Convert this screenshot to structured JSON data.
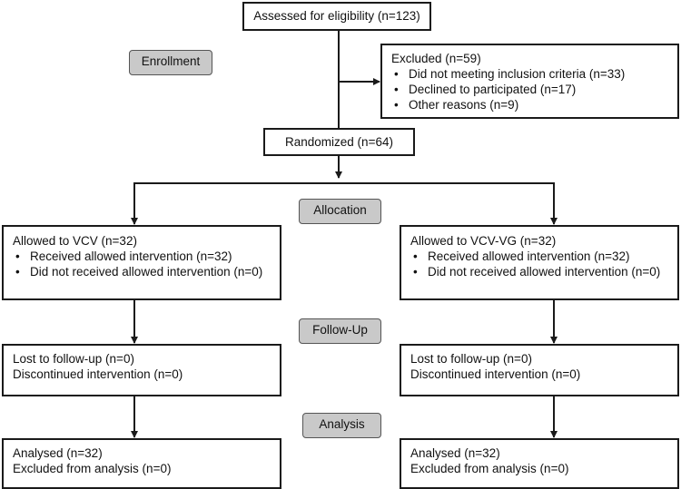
{
  "eligibility": {
    "title": "Assessed for eligibility (n=123)"
  },
  "excluded": {
    "title": "Excluded (n=59)",
    "reasons": [
      "Did not meeting inclusion criteria (n=33)",
      "Declined to participated (n=17)",
      "Other reasons (n=9)"
    ]
  },
  "randomized": {
    "title": "Randomized (n=64)"
  },
  "stages": {
    "enrollment": "Enrollment",
    "allocation": "Allocation",
    "follow_up": "Follow-Up",
    "analysis": "Analysis"
  },
  "arms": [
    {
      "allocation_title": "Allowed to VCV (n=32)",
      "allocation_items": [
        "Received allowed intervention (n=32)",
        "Did not received allowed intervention (n=0)"
      ],
      "followup_lines": [
        "Lost to follow-up (n=0)",
        "Discontinued intervention (n=0)"
      ],
      "analysis_lines": [
        "Analysed (n=32)",
        "Excluded from analysis (n=0)"
      ]
    },
    {
      "allocation_title": "Allowed to VCV-VG (n=32)",
      "allocation_items": [
        "Received allowed intervention (n=32)",
        "Did not received allowed intervention (n=0)"
      ],
      "followup_lines": [
        "Lost to follow-up (n=0)",
        "Discontinued intervention (n=0)"
      ],
      "analysis_lines": [
        "Analysed (n=32)",
        "Excluded from analysis (n=0)"
      ]
    }
  ]
}
